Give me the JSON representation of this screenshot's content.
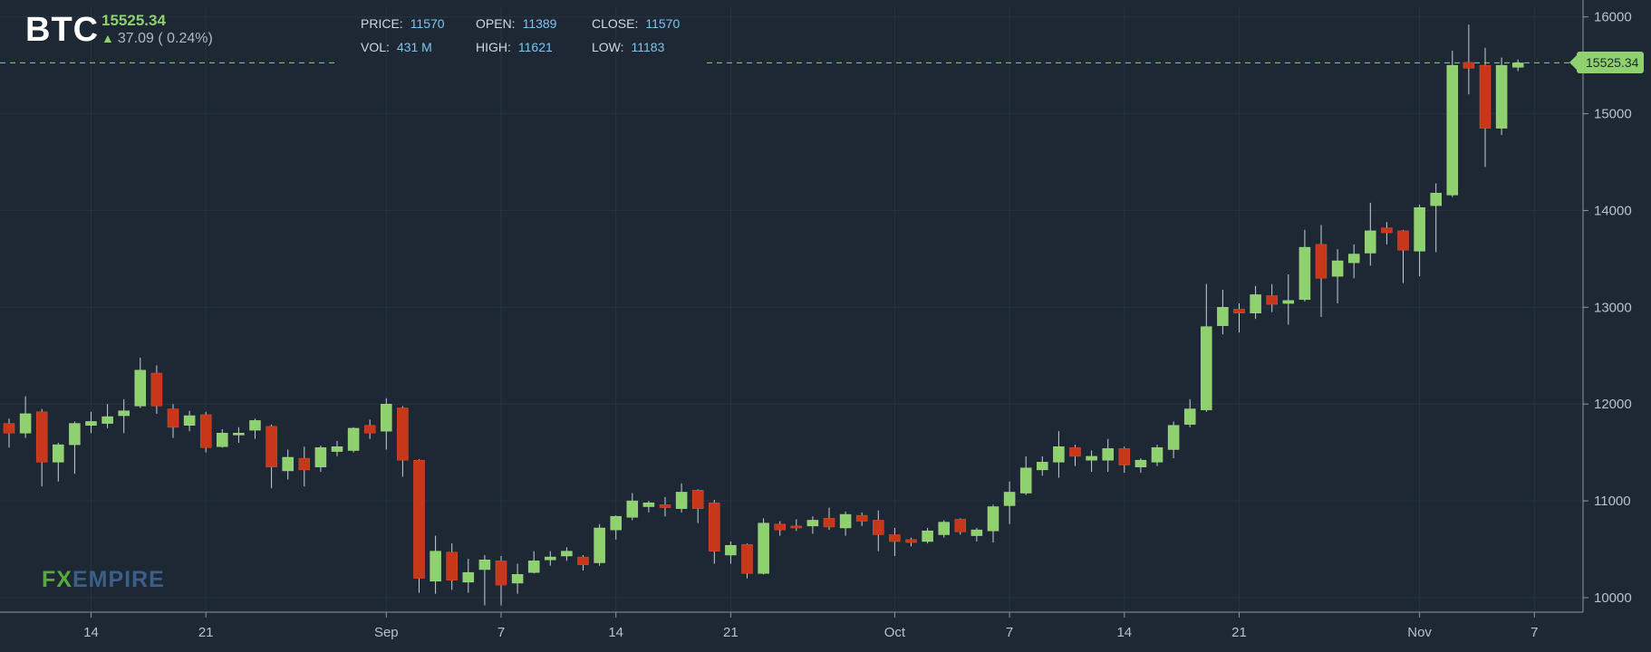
{
  "header": {
    "symbol": "BTC",
    "last": "15525.34",
    "change": "37.09 ( 0.24%)",
    "stats": [
      {
        "label": "PRICE:",
        "value": "11570"
      },
      {
        "label": "VOL:",
        "value": "431 M"
      },
      {
        "label": "OPEN:",
        "value": "11389"
      },
      {
        "label": "HIGH:",
        "value": "11621"
      },
      {
        "label": "CLOSE:",
        "value": "11570"
      },
      {
        "label": "LOW:",
        "value": "11183"
      }
    ]
  },
  "logo": {
    "fx": "FX",
    "empire": "EMPIRE"
  },
  "price_tag": "15525.34",
  "colors": {
    "up": "#8fd16e",
    "down": "#c9371a",
    "grid": "#26333f",
    "axis": "#8a96a3"
  },
  "chart_data": {
    "type": "candlestick",
    "ylim": [
      9850,
      16100
    ],
    "yticks": [
      10000,
      11000,
      12000,
      13000,
      14000,
      15000,
      16000
    ],
    "xticks": [
      {
        "i": 5,
        "label": "14"
      },
      {
        "i": 12,
        "label": "21"
      },
      {
        "i": 23,
        "label": "Sep"
      },
      {
        "i": 30,
        "label": "7"
      },
      {
        "i": 37,
        "label": "14"
      },
      {
        "i": 44,
        "label": "21"
      },
      {
        "i": 54,
        "label": "Oct"
      },
      {
        "i": 61,
        "label": "7"
      },
      {
        "i": 68,
        "label": "14"
      },
      {
        "i": 75,
        "label": "21"
      },
      {
        "i": 86,
        "label": "Nov"
      },
      {
        "i": 93,
        "label": "7"
      }
    ],
    "last_price": 15525.34,
    "candles": [
      [
        11800,
        11700,
        11850,
        11550
      ],
      [
        11700,
        11900,
        12080,
        11650
      ],
      [
        11920,
        11400,
        11950,
        11150
      ],
      [
        11400,
        11580,
        11600,
        11200
      ],
      [
        11580,
        11800,
        11820,
        11280
      ],
      [
        11780,
        11820,
        11920,
        11700
      ],
      [
        11800,
        11870,
        12000,
        11750
      ],
      [
        11880,
        11930,
        12050,
        11700
      ],
      [
        11980,
        12350,
        12480,
        11960
      ],
      [
        12320,
        11980,
        12400,
        11900
      ],
      [
        11950,
        11760,
        12000,
        11650
      ],
      [
        11780,
        11880,
        11930,
        11720
      ],
      [
        11890,
        11550,
        11920,
        11500
      ],
      [
        11560,
        11700,
        11740,
        11550
      ],
      [
        11680,
        11700,
        11760,
        11600
      ],
      [
        11730,
        11830,
        11850,
        11640
      ],
      [
        11770,
        11350,
        11790,
        11130
      ],
      [
        11310,
        11450,
        11530,
        11220
      ],
      [
        11440,
        11320,
        11560,
        11150
      ],
      [
        11350,
        11550,
        11570,
        11300
      ],
      [
        11510,
        11560,
        11620,
        11460
      ],
      [
        11520,
        11750,
        11760,
        11500
      ],
      [
        11780,
        11700,
        11840,
        11640
      ],
      [
        11720,
        12000,
        12060,
        11530
      ],
      [
        11960,
        11420,
        11980,
        11250
      ],
      [
        11420,
        10200,
        11430,
        10050
      ],
      [
        10170,
        10480,
        10640,
        10040
      ],
      [
        10470,
        10180,
        10560,
        10080
      ],
      [
        10160,
        10260,
        10400,
        10050
      ],
      [
        10290,
        10390,
        10440,
        9920
      ],
      [
        10380,
        10130,
        10430,
        9920
      ],
      [
        10150,
        10240,
        10350,
        10040
      ],
      [
        10260,
        10380,
        10480,
        10250
      ],
      [
        10390,
        10420,
        10480,
        10330
      ],
      [
        10430,
        10480,
        10520,
        10380
      ],
      [
        10420,
        10340,
        10440,
        10280
      ],
      [
        10360,
        10720,
        10760,
        10330
      ],
      [
        10700,
        10840,
        10850,
        10600
      ],
      [
        10830,
        11000,
        11080,
        10800
      ],
      [
        10940,
        10980,
        11000,
        10880
      ],
      [
        10960,
        10930,
        11040,
        10840
      ],
      [
        10920,
        11090,
        11180,
        10880
      ],
      [
        11110,
        10920,
        11120,
        10770
      ],
      [
        10980,
        10480,
        11010,
        10350
      ],
      [
        10440,
        10540,
        10580,
        10350
      ],
      [
        10550,
        10250,
        10560,
        10200
      ],
      [
        10250,
        10770,
        10820,
        10240
      ],
      [
        10760,
        10700,
        10790,
        10640
      ],
      [
        10740,
        10720,
        10810,
        10690
      ],
      [
        10740,
        10800,
        10840,
        10660
      ],
      [
        10820,
        10730,
        10930,
        10700
      ],
      [
        10720,
        10860,
        10890,
        10640
      ],
      [
        10850,
        10790,
        10880,
        10740
      ],
      [
        10800,
        10650,
        10900,
        10480
      ],
      [
        10650,
        10580,
        10720,
        10430
      ],
      [
        10600,
        10570,
        10620,
        10530
      ],
      [
        10580,
        10690,
        10720,
        10560
      ],
      [
        10650,
        10780,
        10800,
        10620
      ],
      [
        10810,
        10680,
        10820,
        10650
      ],
      [
        10640,
        10700,
        10720,
        10580
      ],
      [
        10690,
        10940,
        10960,
        10570
      ],
      [
        10950,
        11090,
        11200,
        10760
      ],
      [
        11080,
        11340,
        11460,
        11060
      ],
      [
        11320,
        11400,
        11460,
        11260
      ],
      [
        11400,
        11560,
        11720,
        11240
      ],
      [
        11550,
        11460,
        11580,
        11360
      ],
      [
        11420,
        11460,
        11520,
        11300
      ],
      [
        11420,
        11540,
        11640,
        11300
      ],
      [
        11540,
        11370,
        11560,
        11290
      ],
      [
        11350,
        11420,
        11440,
        11290
      ],
      [
        11400,
        11550,
        11580,
        11360
      ],
      [
        11530,
        11780,
        11820,
        11440
      ],
      [
        11790,
        11950,
        12050,
        11760
      ],
      [
        11940,
        12800,
        13240,
        11920
      ],
      [
        12810,
        13000,
        13180,
        12720
      ],
      [
        12980,
        12940,
        13040,
        12740
      ],
      [
        12940,
        13130,
        13220,
        12880
      ],
      [
        13120,
        13030,
        13240,
        12950
      ],
      [
        13040,
        13070,
        13340,
        12820
      ],
      [
        13080,
        13620,
        13800,
        13060
      ],
      [
        13650,
        13300,
        13850,
        12900
      ],
      [
        13320,
        13480,
        13600,
        13040
      ],
      [
        13460,
        13550,
        13650,
        13300
      ],
      [
        13560,
        13790,
        14080,
        13430
      ],
      [
        13820,
        13770,
        13880,
        13650
      ],
      [
        13790,
        13590,
        13800,
        13250
      ],
      [
        13580,
        14030,
        14060,
        13320
      ],
      [
        14050,
        14180,
        14280,
        13570
      ],
      [
        14160,
        15500,
        15650,
        14140
      ],
      [
        15530,
        15470,
        15920,
        15200
      ],
      [
        15500,
        14850,
        15680,
        14450
      ],
      [
        14850,
        15500,
        15580,
        14780
      ],
      [
        15480,
        15525,
        15560,
        15440
      ]
    ]
  }
}
